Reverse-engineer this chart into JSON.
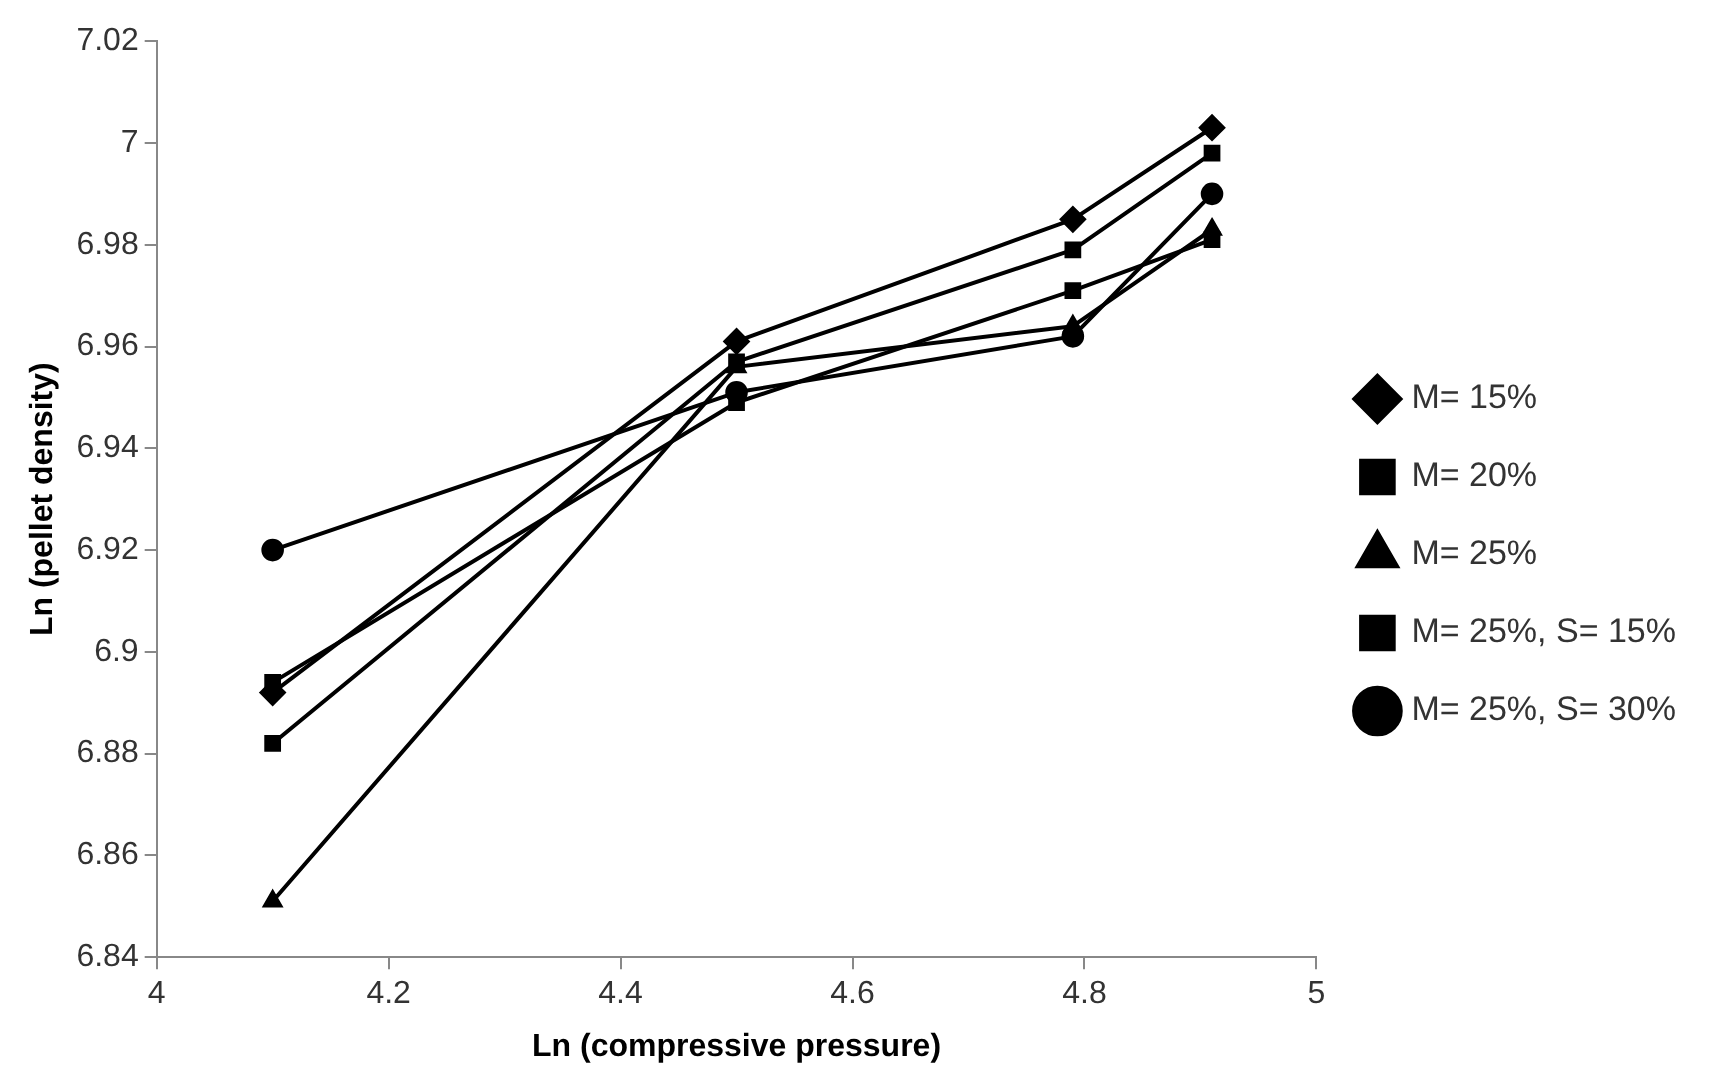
{
  "chart_data": {
    "type": "line",
    "xlabel": "Ln (compressive pressure)",
    "ylabel": "Ln (pellet density)",
    "x": [
      4.1,
      4.5,
      4.79,
      4.91
    ],
    "xlim": [
      4,
      5
    ],
    "xticks": [
      4,
      4.2,
      4.4,
      4.6,
      4.8,
      5
    ],
    "ylim": [
      6.84,
      7.02
    ],
    "yticks": [
      6.84,
      6.86,
      6.88,
      6.9,
      6.92,
      6.94,
      6.96,
      6.98,
      7,
      7.02
    ],
    "grid": false,
    "legend": "right",
    "line_style": "solid",
    "series": [
      {
        "name": "M= 15%",
        "color": "#000000",
        "marker": "diamond",
        "values": [
          6.892,
          6.961,
          6.985,
          7.003
        ]
      },
      {
        "name": "M= 20%",
        "color": "#000000",
        "marker": "square",
        "values": [
          6.882,
          6.957,
          6.979,
          6.998
        ]
      },
      {
        "name": "M= 25%",
        "color": "#000000",
        "marker": "triangle",
        "values": [
          6.851,
          6.956,
          6.964,
          6.983
        ]
      },
      {
        "name": "M= 25%, S= 15%",
        "color": "#000000",
        "marker": "square",
        "values": [
          6.894,
          6.949,
          6.971,
          6.981
        ]
      },
      {
        "name": "M= 25%, S= 30%",
        "color": "#000000",
        "marker": "circle",
        "values": [
          6.92,
          6.951,
          6.962,
          6.99
        ]
      }
    ]
  }
}
